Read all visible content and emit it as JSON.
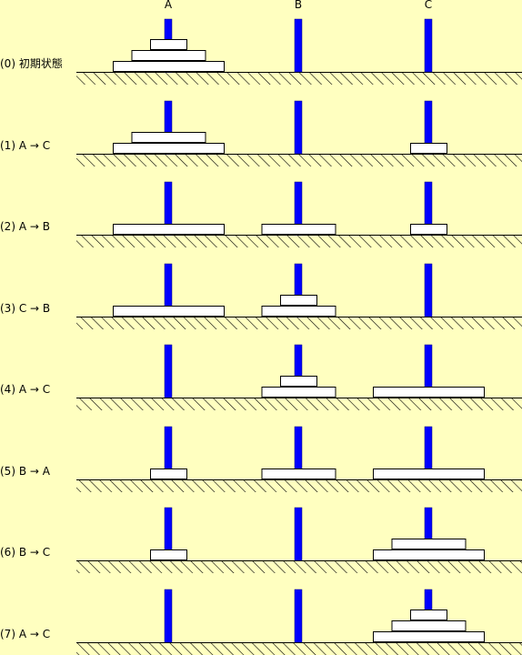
{
  "pegs": [
    "A",
    "B",
    "C"
  ],
  "colors": {
    "background": "#ffffc0",
    "peg": "#0000ff",
    "peg_outline": "#00007a",
    "disk": "#ffffff",
    "ground_line": "#000000"
  },
  "steps": [
    {
      "label": "(0) 初期状態",
      "pegs": [
        [
          3,
          2,
          1
        ],
        [],
        []
      ]
    },
    {
      "label": "(1) A → C",
      "pegs": [
        [
          3,
          2
        ],
        [],
        [
          1
        ]
      ]
    },
    {
      "label": "(2) A → B",
      "pegs": [
        [
          3
        ],
        [
          2
        ],
        [
          1
        ]
      ]
    },
    {
      "label": "(3) C → B",
      "pegs": [
        [
          3
        ],
        [
          2,
          1
        ],
        []
      ]
    },
    {
      "label": "(4) A → C",
      "pegs": [
        [],
        [
          2,
          1
        ],
        [
          3
        ]
      ]
    },
    {
      "label": "(5) B → A",
      "pegs": [
        [
          1
        ],
        [
          2
        ],
        [
          3
        ]
      ]
    },
    {
      "label": "(6) B → C",
      "pegs": [
        [
          1
        ],
        [],
        [
          3,
          2
        ]
      ]
    },
    {
      "label": "(7) A → C",
      "pegs": [
        [],
        [],
        [
          3,
          2,
          1
        ]
      ]
    }
  ]
}
